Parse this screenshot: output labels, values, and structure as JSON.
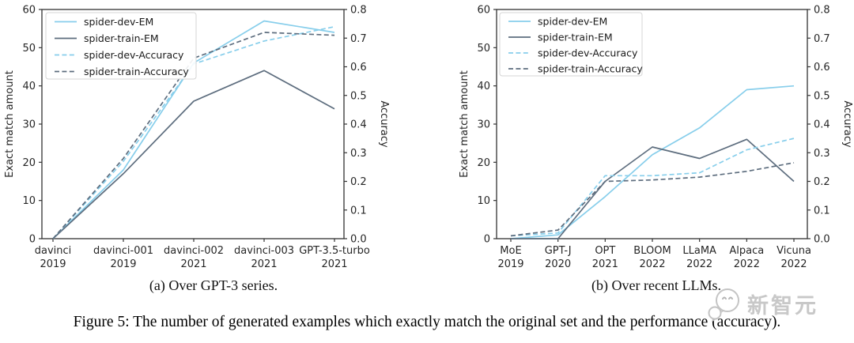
{
  "figure": {
    "caption": "Figure 5: The number of generated examples which exactly match the original set and the performance (accuracy)."
  },
  "colors": {
    "dev": "#87ceeb",
    "train": "#5d6d7e",
    "axis": "#333333",
    "tick_text": "#262626",
    "legend_border": "#d5d5d5",
    "watermark": "#c8c8c8"
  },
  "watermark": {
    "text": "新智元",
    "icon": "wechat-bubbles"
  },
  "chart_data": [
    {
      "type": "line",
      "caption": "(a) Over GPT-3 series.",
      "ylabel_left": "Exact match amount",
      "ylabel_right": "Accuracy",
      "ylim_left": [
        0,
        60
      ],
      "ylim_right": [
        0.0,
        0.8
      ],
      "yticks_left": [
        0,
        10,
        20,
        30,
        40,
        50,
        60
      ],
      "yticks_right": [
        0.0,
        0.1,
        0.2,
        0.3,
        0.4,
        0.5,
        0.6,
        0.7,
        0.8
      ],
      "grid": false,
      "legend_position": "upper left",
      "categories": [
        {
          "label": "davinci",
          "year": "2019"
        },
        {
          "label": "davinci-001",
          "year": "2019"
        },
        {
          "label": "davinci-002",
          "year": "2021"
        },
        {
          "label": "davinci-003",
          "year": "2021"
        },
        {
          "label": "GPT-3.5-turbo",
          "year": "2021"
        }
      ],
      "series": [
        {
          "name": "spider-dev-EM",
          "axis": "left",
          "style": "solid",
          "color": "#87ceeb",
          "values": [
            0,
            18,
            46,
            57,
            54
          ]
        },
        {
          "name": "spider-train-EM",
          "axis": "left",
          "style": "solid",
          "color": "#5d6d7e",
          "values": [
            0,
            17,
            36,
            44,
            34
          ]
        },
        {
          "name": "spider-dev-Accuracy",
          "axis": "right",
          "style": "dashed",
          "color": "#87ceeb",
          "values": [
            0.0,
            0.27,
            0.61,
            0.69,
            0.74
          ]
        },
        {
          "name": "spider-train-Accuracy",
          "axis": "right",
          "style": "dashed",
          "color": "#5d6d7e",
          "values": [
            0.0,
            0.28,
            0.63,
            0.72,
            0.71
          ]
        }
      ]
    },
    {
      "type": "line",
      "caption": "(b) Over recent LLMs.",
      "ylabel_left": "Exact match amount",
      "ylabel_right": "Accuracy",
      "ylim_left": [
        0,
        60
      ],
      "ylim_right": [
        0.0,
        0.8
      ],
      "yticks_left": [
        0,
        10,
        20,
        30,
        40,
        50,
        60
      ],
      "yticks_right": [
        0.0,
        0.1,
        0.2,
        0.3,
        0.4,
        0.5,
        0.6,
        0.7,
        0.8
      ],
      "grid": false,
      "legend_position": "upper left",
      "categories": [
        {
          "label": "MoE",
          "year": "2019"
        },
        {
          "label": "GPT-J",
          "year": "2020"
        },
        {
          "label": "OPT",
          "year": "2021"
        },
        {
          "label": "BLOOM",
          "year": "2022"
        },
        {
          "label": "LLaMA",
          "year": "2022"
        },
        {
          "label": "Alpaca",
          "year": "2022"
        },
        {
          "label": "Vicuna",
          "year": "2022"
        }
      ],
      "series": [
        {
          "name": "spider-dev-EM",
          "axis": "left",
          "style": "solid",
          "color": "#87ceeb",
          "values": [
            0,
            1,
            11,
            22,
            29,
            39,
            40
          ]
        },
        {
          "name": "spider-train-EM",
          "axis": "left",
          "style": "solid",
          "color": "#5d6d7e",
          "values": [
            0,
            0,
            15,
            24,
            21,
            26,
            15
          ]
        },
        {
          "name": "spider-dev-Accuracy",
          "axis": "right",
          "style": "dashed",
          "color": "#87ceeb",
          "values": [
            0.01,
            0.02,
            0.22,
            0.22,
            0.23,
            0.31,
            0.35
          ]
        },
        {
          "name": "spider-train-Accuracy",
          "axis": "right",
          "style": "dashed",
          "color": "#5d6d7e",
          "values": [
            0.01,
            0.03,
            0.2,
            0.205,
            0.215,
            0.235,
            0.265
          ]
        }
      ]
    }
  ]
}
